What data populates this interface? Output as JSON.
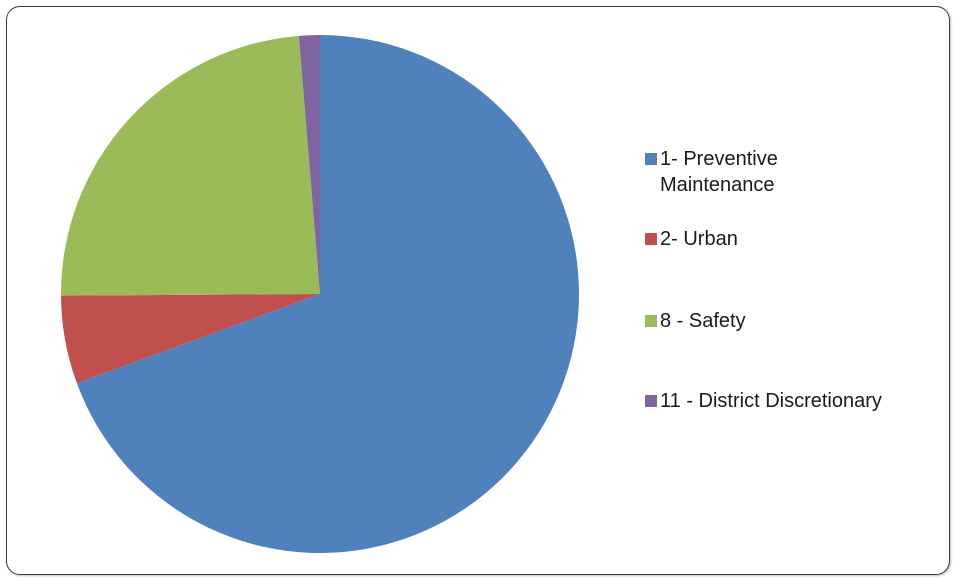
{
  "chart_data": {
    "type": "pie",
    "title": "",
    "categories": [
      "1- Preventive Maintenance",
      "2- Urban",
      "8 - Safety",
      "11 - District Discretionary"
    ],
    "values": [
      69.4,
      5.5,
      23.8,
      1.3
    ],
    "colors": [
      "#4F81BD",
      "#C0504D",
      "#9BBB59",
      "#8064A2"
    ],
    "legend_position": "right"
  }
}
